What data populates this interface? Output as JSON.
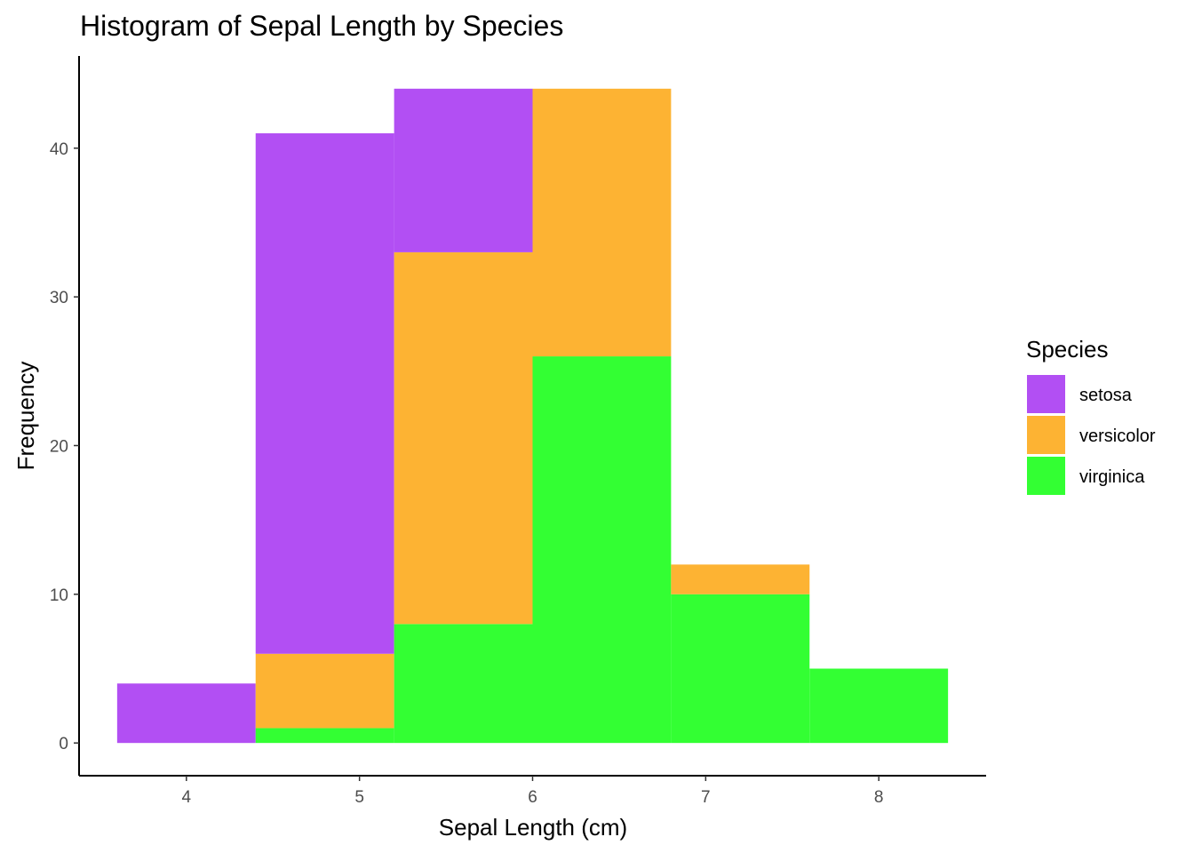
{
  "chart_data": {
    "type": "bar",
    "stacked": true,
    "title": "Histogram of Sepal Length by Species",
    "xlabel": "Sepal Length (cm)",
    "ylabel": "Frequency",
    "bin_width": 0.8,
    "bins": [
      {
        "x_start": 3.6,
        "x_end": 4.4
      },
      {
        "x_start": 4.4,
        "x_end": 5.2
      },
      {
        "x_start": 5.2,
        "x_end": 6.0
      },
      {
        "x_start": 6.0,
        "x_end": 6.8
      },
      {
        "x_start": 6.8,
        "x_end": 7.6
      },
      {
        "x_start": 7.6,
        "x_end": 8.4
      }
    ],
    "series": [
      {
        "name": "setosa",
        "color": "#b24ff3",
        "values": [
          4,
          35,
          11,
          0,
          0,
          0
        ]
      },
      {
        "name": "versicolor",
        "color": "#fdb333",
        "values": [
          0,
          5,
          25,
          18,
          2,
          0
        ]
      },
      {
        "name": "virginica",
        "color": "#33ff33",
        "values": [
          0,
          1,
          8,
          26,
          10,
          5
        ]
      }
    ],
    "xlim": [
      3.38,
      8.62
    ],
    "ylim": [
      -2.2,
      46.2
    ],
    "x_ticks": [
      "4",
      "5",
      "6",
      "7",
      "8"
    ],
    "x_tick_values": [
      4,
      5,
      6,
      7,
      8
    ],
    "y_ticks": [
      "0",
      "10",
      "20",
      "30",
      "40"
    ],
    "y_tick_values": [
      0,
      10,
      20,
      30,
      40
    ],
    "grid": false,
    "legend": {
      "title": "Species",
      "position": "right",
      "entries": [
        "setosa",
        "versicolor",
        "virginica"
      ]
    }
  }
}
